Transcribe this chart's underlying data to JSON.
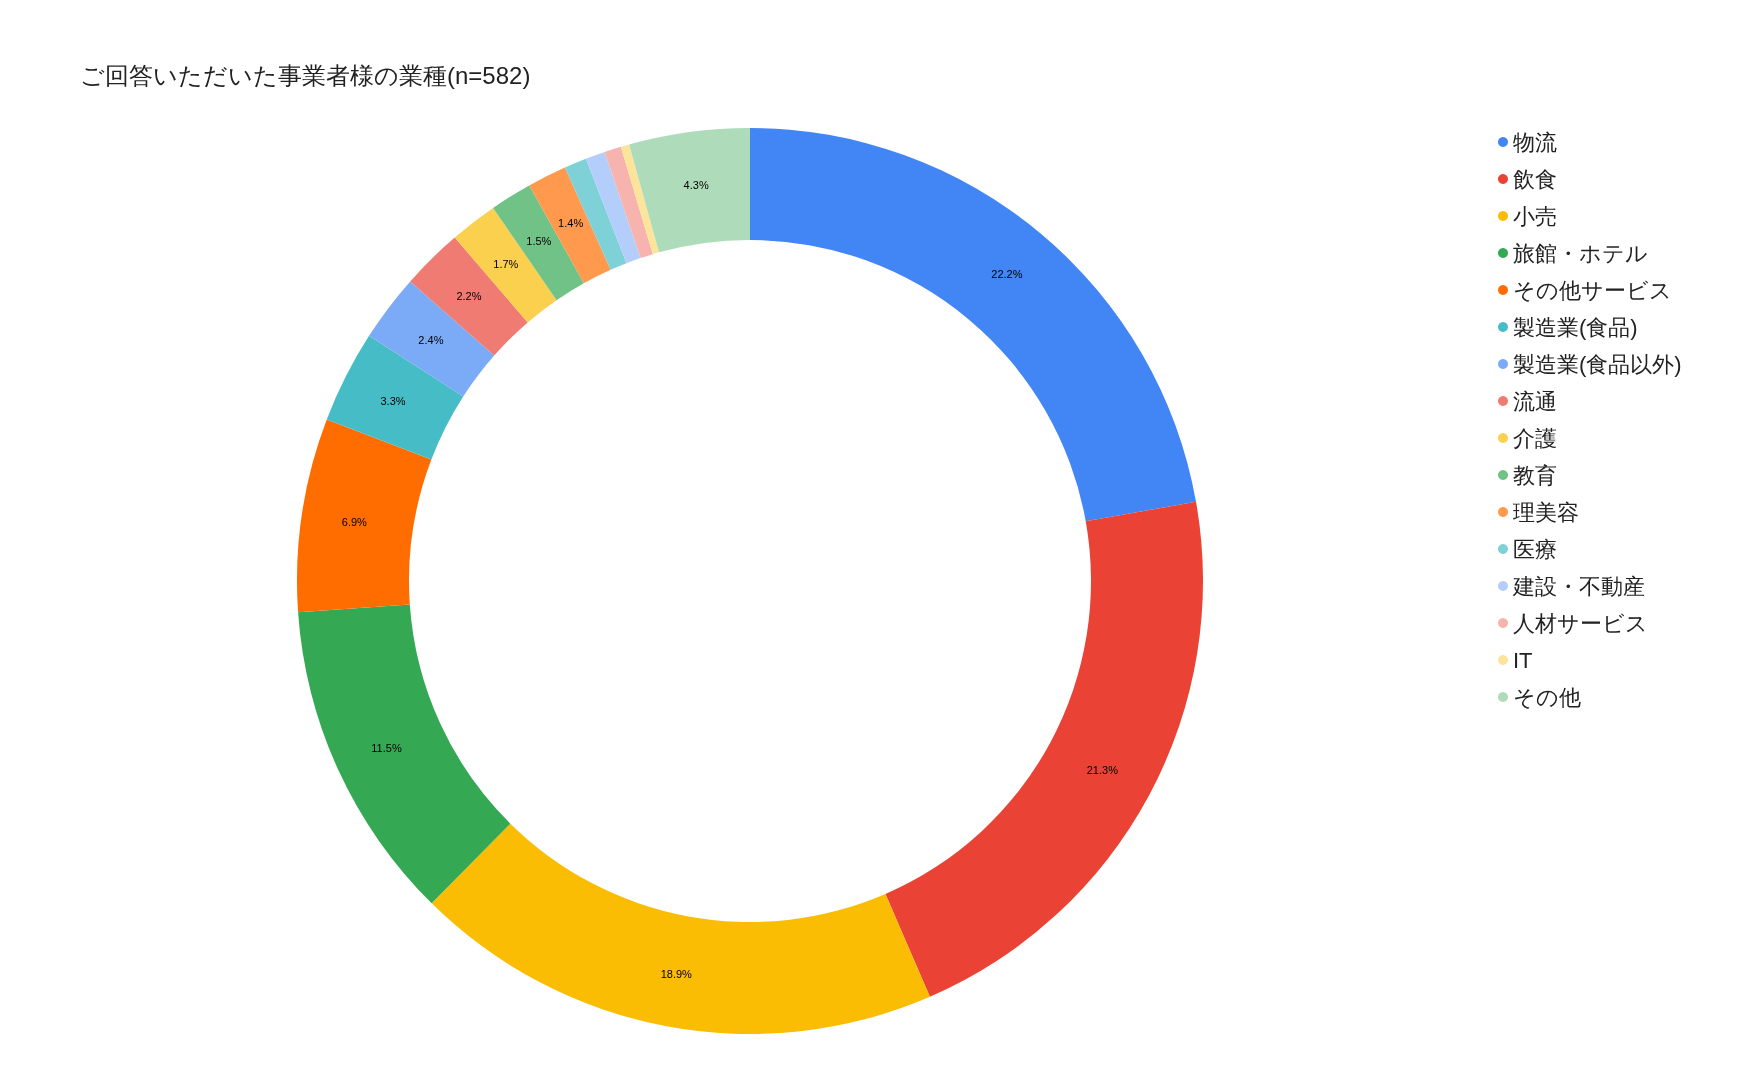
{
  "chart_data": {
    "type": "donut",
    "title": "ご回答いただいた事業者様の業種(n=582)",
    "categories": [
      "物流",
      "飲食",
      "小売",
      "旅館・ホテル",
      "その他サービス",
      "製造業(食品)",
      "製造業(食品以外)",
      "流通",
      "介護",
      "教育",
      "理美容",
      "医療",
      "建設・不動産",
      "人材サービス",
      "IT",
      "その他"
    ],
    "values": [
      22.2,
      21.3,
      18.9,
      11.5,
      6.9,
      3.3,
      2.4,
      2.2,
      1.7,
      1.5,
      1.4,
      0.8,
      0.7,
      0.6,
      0.3,
      4.3
    ],
    "value_labels": [
      "22.2%",
      "21.3%",
      "18.9%",
      "11.5%",
      "6.9%",
      "3.3%",
      "2.4%",
      "2.2%",
      "1.7%",
      "1.5%",
      "1.4%",
      null,
      null,
      null,
      null,
      "4.3%"
    ],
    "colors": [
      "#4285f4",
      "#ea4335",
      "#fbbc04",
      "#34a853",
      "#ff6d01",
      "#46bdc6",
      "#7baaf7",
      "#f07b72",
      "#fcd04f",
      "#71c287",
      "#ff994d",
      "#7ed1d7",
      "#b3cefb",
      "#f7b4ae",
      "#fde49b",
      "#aedcba"
    ],
    "legend": "right"
  }
}
